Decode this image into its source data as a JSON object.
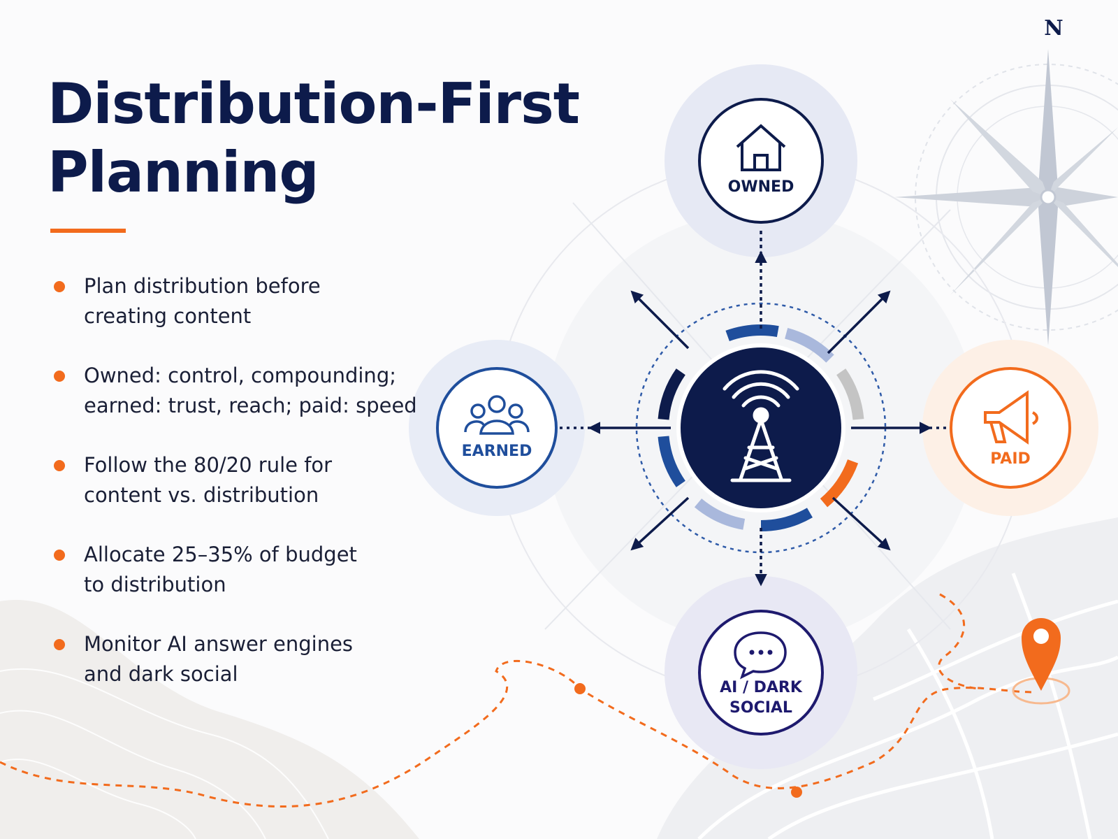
{
  "title_lines": [
    "Distribution-First",
    "Planning"
  ],
  "bullets": [
    [
      "Plan distribution before",
      "creating content"
    ],
    [
      "Owned: control, compounding;",
      "earned: trust, reach; paid: speed"
    ],
    [
      "Follow the 80/20 rule for",
      "content vs. distribution"
    ],
    [
      "Allocate 25–35% of budget",
      "to distribution"
    ],
    [
      "Monitor AI answer engines",
      "and dark social"
    ]
  ],
  "nodes": [
    {
      "label_lines": [
        "OWNED"
      ]
    },
    {
      "label_lines": [
        "EARNED"
      ]
    },
    {
      "label_lines": [
        "PAID"
      ]
    },
    {
      "label_lines": [
        "AI / DARK",
        "SOCIAL"
      ]
    }
  ],
  "compass_label": "N"
}
